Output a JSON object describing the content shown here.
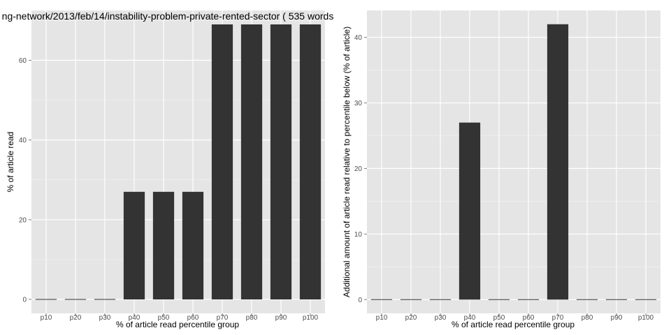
{
  "chart_data": [
    {
      "type": "bar",
      "title": "ng-network/2013/feb/14/instability-problem-private-rented-sector ( 535 words",
      "xlabel": "% of article read percentile group",
      "ylabel": "% of article read",
      "categories": [
        "p10",
        "p20",
        "p30",
        "p40",
        "p50",
        "p60",
        "p70",
        "p80",
        "p90",
        "p100"
      ],
      "values": [
        0,
        0,
        0,
        27,
        27,
        27,
        69,
        69,
        69,
        69
      ],
      "yticks": [
        0,
        20,
        40,
        60
      ],
      "ytick_labels": [
        "0",
        "20",
        "40",
        "60"
      ],
      "ylim": [
        -3.5,
        72.5
      ],
      "grid": true,
      "bar_color": "#333333",
      "panel_color": "#e5e5e5",
      "grid_color": "#ffffff"
    },
    {
      "type": "bar",
      "title": "",
      "xlabel": "% of article read percentile group",
      "ylabel": "Additional amount of article read relative to percentile below (% of article)",
      "categories": [
        "p10",
        "p20",
        "p30",
        "p40",
        "p50",
        "p60",
        "p70",
        "p80",
        "p90",
        "p100"
      ],
      "values": [
        0,
        0,
        0,
        27,
        0,
        0,
        42,
        0,
        0,
        0
      ],
      "yticks": [
        0,
        10,
        20,
        30,
        40
      ],
      "ytick_labels": [
        "0",
        "10",
        "20",
        "30",
        "40"
      ],
      "ylim": [
        -2.1,
        44.1
      ],
      "grid": true,
      "bar_color": "#333333",
      "panel_color": "#e5e5e5",
      "grid_color": "#ffffff"
    }
  ]
}
